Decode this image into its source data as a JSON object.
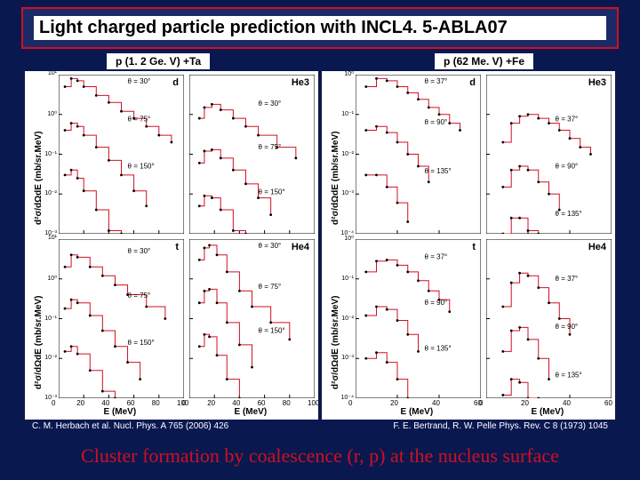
{
  "slide": {
    "title": "Light charged particle prediction with INCL4. 5-ABLA07",
    "left_label": "p (1. 2 Ge. V)  +Ta",
    "right_label": "p (62 Me. V)  +Fe",
    "citation_left": "C. M. Herbach et al. Nucl. Phys. A 765 (2006) 426",
    "citation_right": "F. E. Bertrand, R. W. Pelle Phys. Rev. C 8 (1973) 1045",
    "conclusion": "Cluster formation by coalescence (r, p) at the nucleus surface"
  },
  "colors": {
    "background": "#0a1850",
    "border": "#d01020",
    "model_line": "#d01020",
    "data_point": "#000000",
    "panel_bg": "#ffffff"
  },
  "typography": {
    "title_fontsize": 20,
    "label_fontsize": 12,
    "citation_fontsize": 10,
    "conclusion_fontsize": 22,
    "conclusion_family": "Times New Roman"
  },
  "left_chart": {
    "type": "scatter-log",
    "layout": "2x2",
    "xaxis": {
      "label": "E (MeV)",
      "lim": [
        0,
        100
      ],
      "ticks": [
        0,
        20,
        40,
        60,
        80,
        100
      ]
    },
    "yaxis": {
      "label": "d²σ/dΩdE (mb/sr.MeV)",
      "log": true,
      "lim": [
        0.001,
        10
      ]
    },
    "series_color": "#d01020",
    "marker_color": "#000000",
    "panels": [
      {
        "title": "d",
        "thetas": [
          {
            "label": "θ = 30°",
            "scale": 1.0,
            "data": [
              [
                5,
                5
              ],
              [
                10,
                8
              ],
              [
                15,
                7
              ],
              [
                20,
                5
              ],
              [
                30,
                3
              ],
              [
                40,
                2
              ],
              [
                50,
                1.2
              ],
              [
                60,
                0.8
              ],
              [
                70,
                0.5
              ],
              [
                80,
                0.3
              ],
              [
                90,
                0.2
              ]
            ]
          },
          {
            "label": "θ = 75°",
            "scale": 0.1,
            "data": [
              [
                5,
                4
              ],
              [
                10,
                6
              ],
              [
                15,
                5
              ],
              [
                20,
                3
              ],
              [
                30,
                1.5
              ],
              [
                40,
                0.7
              ],
              [
                50,
                0.3
              ],
              [
                60,
                0.12
              ],
              [
                70,
                0.05
              ]
            ]
          },
          {
            "label": "θ = 150°",
            "scale": 0.01,
            "data": [
              [
                5,
                3
              ],
              [
                10,
                4
              ],
              [
                15,
                2.5
              ],
              [
                20,
                1.2
              ],
              [
                30,
                0.4
              ],
              [
                40,
                0.12
              ],
              [
                50,
                0.03
              ]
            ]
          }
        ]
      },
      {
        "title": "He3",
        "thetas": [
          {
            "label": "θ = 30°",
            "scale": 1.0,
            "data": [
              [
                8,
                0.8
              ],
              [
                12,
                1.5
              ],
              [
                18,
                1.8
              ],
              [
                25,
                1.3
              ],
              [
                35,
                0.8
              ],
              [
                45,
                0.5
              ],
              [
                55,
                0.3
              ],
              [
                70,
                0.15
              ],
              [
                85,
                0.08
              ]
            ]
          },
          {
            "label": "θ = 75°",
            "scale": 0.1,
            "data": [
              [
                8,
                0.6
              ],
              [
                12,
                1.2
              ],
              [
                18,
                1.3
              ],
              [
                25,
                0.8
              ],
              [
                35,
                0.4
              ],
              [
                45,
                0.18
              ],
              [
                55,
                0.08
              ],
              [
                65,
                0.03
              ]
            ]
          },
          {
            "label": "θ = 150°",
            "scale": 0.01,
            "data": [
              [
                8,
                0.5
              ],
              [
                12,
                0.9
              ],
              [
                18,
                0.8
              ],
              [
                25,
                0.4
              ],
              [
                35,
                0.12
              ],
              [
                45,
                0.03
              ]
            ]
          }
        ]
      },
      {
        "title": "t",
        "thetas": [
          {
            "label": "θ = 30°",
            "scale": 1.0,
            "data": [
              [
                5,
                2
              ],
              [
                10,
                4
              ],
              [
                15,
                3.5
              ],
              [
                25,
                2
              ],
              [
                35,
                1.2
              ],
              [
                45,
                0.7
              ],
              [
                55,
                0.4
              ],
              [
                70,
                0.2
              ],
              [
                85,
                0.1
              ]
            ]
          },
          {
            "label": "θ = 75°",
            "scale": 0.1,
            "data": [
              [
                5,
                1.8
              ],
              [
                10,
                3
              ],
              [
                15,
                2.5
              ],
              [
                25,
                1.2
              ],
              [
                35,
                0.5
              ],
              [
                45,
                0.2
              ],
              [
                55,
                0.08
              ],
              [
                65,
                0.03
              ]
            ]
          },
          {
            "label": "θ = 150°",
            "scale": 0.01,
            "data": [
              [
                5,
                1.5
              ],
              [
                10,
                2
              ],
              [
                15,
                1.3
              ],
              [
                25,
                0.5
              ],
              [
                35,
                0.15
              ],
              [
                45,
                0.04
              ]
            ]
          }
        ]
      },
      {
        "title": "He4",
        "thetas": [
          {
            "label": "θ = 30°",
            "scale": 1.0,
            "data": [
              [
                8,
                3
              ],
              [
                12,
                6
              ],
              [
                16,
                7
              ],
              [
                22,
                4
              ],
              [
                30,
                1.5
              ],
              [
                40,
                0.5
              ],
              [
                50,
                0.2
              ],
              [
                65,
                0.08
              ],
              [
                80,
                0.03
              ]
            ]
          },
          {
            "label": "θ = 75°",
            "scale": 0.1,
            "data": [
              [
                8,
                2.5
              ],
              [
                12,
                5
              ],
              [
                16,
                5.5
              ],
              [
                22,
                2.5
              ],
              [
                30,
                0.8
              ],
              [
                40,
                0.22
              ],
              [
                50,
                0.06
              ]
            ]
          },
          {
            "label": "θ = 150°",
            "scale": 0.01,
            "data": [
              [
                8,
                2
              ],
              [
                12,
                4
              ],
              [
                16,
                3.5
              ],
              [
                22,
                1.2
              ],
              [
                30,
                0.3
              ],
              [
                40,
                0.06
              ]
            ]
          }
        ]
      }
    ]
  },
  "right_chart": {
    "type": "scatter-log",
    "layout": "2x2",
    "xaxis": {
      "label": "E (MeV)",
      "lim": [
        0,
        60
      ],
      "ticks": [
        0,
        20,
        40,
        60
      ]
    },
    "yaxis": {
      "label": "d²σ/dΩdE (mb/sr.MeV)",
      "log": true,
      "lim": [
        0.0001,
        1
      ]
    },
    "series_color": "#d01020",
    "marker_color": "#000000",
    "panels": [
      {
        "title": "d",
        "thetas": [
          {
            "label": "θ = 37°",
            "scale": 1.0,
            "data": [
              [
                5,
                0.5
              ],
              [
                10,
                0.8
              ],
              [
                15,
                0.7
              ],
              [
                20,
                0.5
              ],
              [
                25,
                0.35
              ],
              [
                30,
                0.24
              ],
              [
                35,
                0.15
              ],
              [
                40,
                0.1
              ],
              [
                45,
                0.06
              ],
              [
                50,
                0.04
              ]
            ]
          },
          {
            "label": "θ = 90°",
            "scale": 0.1,
            "data": [
              [
                5,
                0.4
              ],
              [
                10,
                0.5
              ],
              [
                15,
                0.35
              ],
              [
                20,
                0.2
              ],
              [
                25,
                0.1
              ],
              [
                30,
                0.05
              ],
              [
                35,
                0.02
              ]
            ]
          },
          {
            "label": "θ = 135°",
            "scale": 0.01,
            "data": [
              [
                5,
                0.3
              ],
              [
                10,
                0.3
              ],
              [
                15,
                0.15
              ],
              [
                20,
                0.06
              ],
              [
                25,
                0.02
              ]
            ]
          }
        ]
      },
      {
        "title": "He3",
        "thetas": [
          {
            "label": "θ = 37°",
            "scale": 1.0,
            "data": [
              [
                8,
                0.02
              ],
              [
                12,
                0.06
              ],
              [
                16,
                0.09
              ],
              [
                20,
                0.1
              ],
              [
                25,
                0.08
              ],
              [
                30,
                0.06
              ],
              [
                35,
                0.04
              ],
              [
                40,
                0.025
              ],
              [
                45,
                0.015
              ],
              [
                50,
                0.01
              ]
            ]
          },
          {
            "label": "θ = 90°",
            "scale": 0.1,
            "data": [
              [
                8,
                0.015
              ],
              [
                12,
                0.04
              ],
              [
                16,
                0.05
              ],
              [
                20,
                0.04
              ],
              [
                25,
                0.02
              ],
              [
                30,
                0.01
              ],
              [
                35,
                0.004
              ]
            ]
          },
          {
            "label": "θ = 135°",
            "scale": 0.01,
            "data": [
              [
                8,
                0.01
              ],
              [
                12,
                0.025
              ],
              [
                16,
                0.025
              ],
              [
                20,
                0.012
              ],
              [
                25,
                0.004
              ]
            ]
          }
        ]
      },
      {
        "title": "t",
        "thetas": [
          {
            "label": "θ = 37°",
            "scale": 1.0,
            "data": [
              [
                5,
                0.15
              ],
              [
                10,
                0.28
              ],
              [
                15,
                0.3
              ],
              [
                20,
                0.22
              ],
              [
                25,
                0.15
              ],
              [
                30,
                0.09
              ],
              [
                35,
                0.05
              ],
              [
                40,
                0.03
              ],
              [
                45,
                0.015
              ]
            ]
          },
          {
            "label": "θ = 90°",
            "scale": 0.1,
            "data": [
              [
                5,
                0.12
              ],
              [
                10,
                0.2
              ],
              [
                15,
                0.17
              ],
              [
                20,
                0.09
              ],
              [
                25,
                0.04
              ],
              [
                30,
                0.015
              ]
            ]
          },
          {
            "label": "θ = 135°",
            "scale": 0.01,
            "data": [
              [
                5,
                0.1
              ],
              [
                10,
                0.14
              ],
              [
                15,
                0.08
              ],
              [
                20,
                0.03
              ],
              [
                25,
                0.01
              ]
            ]
          }
        ]
      },
      {
        "title": "He4",
        "thetas": [
          {
            "label": "θ = 37°",
            "scale": 1.0,
            "data": [
              [
                8,
                0.02
              ],
              [
                12,
                0.08
              ],
              [
                16,
                0.14
              ],
              [
                20,
                0.12
              ],
              [
                25,
                0.06
              ],
              [
                30,
                0.025
              ],
              [
                35,
                0.01
              ],
              [
                40,
                0.004
              ]
            ]
          },
          {
            "label": "θ = 90°",
            "scale": 0.1,
            "data": [
              [
                8,
                0.015
              ],
              [
                12,
                0.05
              ],
              [
                16,
                0.06
              ],
              [
                20,
                0.03
              ],
              [
                25,
                0.01
              ],
              [
                30,
                0.003
              ]
            ]
          },
          {
            "label": "θ = 135°",
            "scale": 0.01,
            "data": [
              [
                8,
                0.012
              ],
              [
                12,
                0.03
              ],
              [
                16,
                0.025
              ],
              [
                20,
                0.008
              ],
              [
                25,
                0.002
              ]
            ]
          }
        ]
      }
    ]
  }
}
